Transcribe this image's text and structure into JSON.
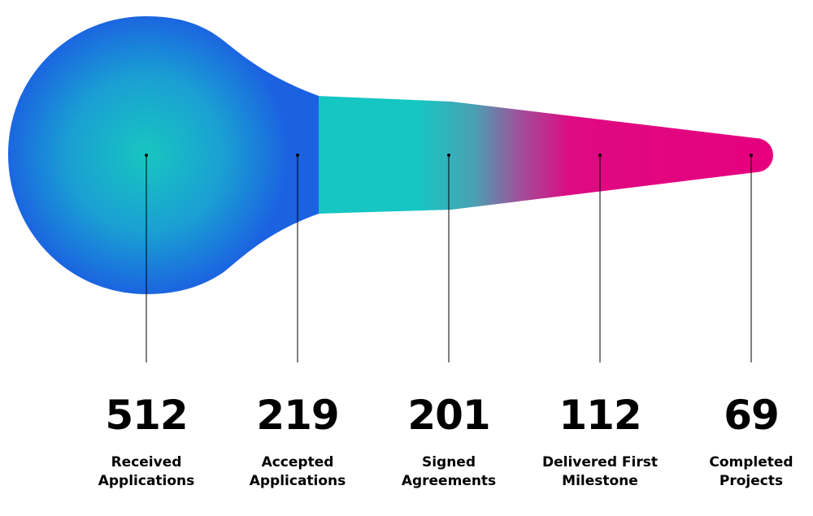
{
  "chart_data": {
    "type": "funnel",
    "title": "",
    "stages": [
      {
        "value": 512,
        "label_lines": [
          "Received",
          "Applications"
        ]
      },
      {
        "value": 219,
        "label_lines": [
          "Accepted",
          "Applications"
        ]
      },
      {
        "value": 201,
        "label_lines": [
          "Signed",
          "Agreements"
        ]
      },
      {
        "value": 112,
        "label_lines": [
          "Delivered First",
          "Milestone"
        ]
      },
      {
        "value": 69,
        "label_lines": [
          "Completed",
          "Projects"
        ]
      }
    ],
    "colors": {
      "gradient": [
        "#1a66e0",
        "#17c6c0",
        "#16c6c3",
        "#e6007e"
      ],
      "leader_line": "#000000"
    }
  }
}
